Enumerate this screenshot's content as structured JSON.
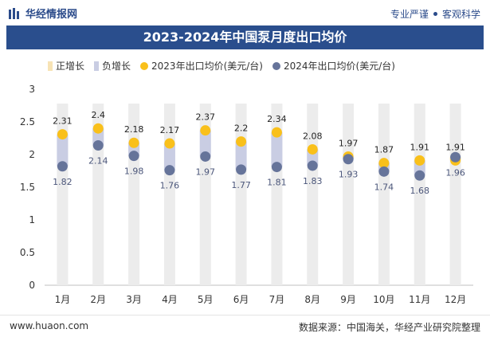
{
  "header": {
    "brand": "华经情报网",
    "tagline_left": "专业严谨",
    "tagline_right": "客观科学"
  },
  "colors": {
    "title_bg": "#2a4e8d",
    "pos_bar": "#f7e3b5",
    "neg_bar": "#c9cde3",
    "series_2023": "#f9c01b",
    "series_2024": "#66749a",
    "grid_bar": "#ececec"
  },
  "chart_data": {
    "type": "line",
    "title": "2023-2024年中国泵月度出口均价",
    "categories": [
      "1月",
      "2月",
      "3月",
      "4月",
      "5月",
      "6月",
      "7月",
      "8月",
      "9月",
      "10月",
      "11月",
      "12月"
    ],
    "ylim": [
      0,
      3
    ],
    "yticks": [
      "0",
      "0.5",
      "1",
      "1.5",
      "2",
      "2.5",
      "3"
    ],
    "legend_position": "top-left",
    "legend": [
      "正增长",
      "负增长",
      "2023年出口均价(美元/台)",
      "2024年出口均价(美元/台)"
    ],
    "series": [
      {
        "name": "2023年出口均价(美元/台)",
        "values": [
          2.31,
          2.4,
          2.18,
          2.17,
          2.37,
          2.2,
          2.34,
          2.08,
          1.97,
          1.87,
          1.91,
          1.91
        ]
      },
      {
        "name": "2024年出口均价(美元/台)",
        "values": [
          1.82,
          2.14,
          1.98,
          1.76,
          1.97,
          1.77,
          1.81,
          1.83,
          1.93,
          1.74,
          1.68,
          1.96
        ]
      }
    ],
    "labels_2023": [
      "2.31",
      "2.4",
      "2.18",
      "2.17",
      "2.37",
      "2.2",
      "2.34",
      "2.08",
      "1.97",
      "1.87",
      "1.91",
      "1.91"
    ],
    "labels_2024": [
      "1.82",
      "2.14",
      "1.98",
      "1.76",
      "1.97",
      "1.77",
      "1.81",
      "1.83",
      "1.93",
      "1.74",
      "1.68",
      "1.96"
    ]
  },
  "footer": {
    "website": "www.huaon.com",
    "source": "数据来源：中国海关，华经产业研究院整理"
  },
  "icons": {
    "logo": "bar-logo-icon"
  }
}
